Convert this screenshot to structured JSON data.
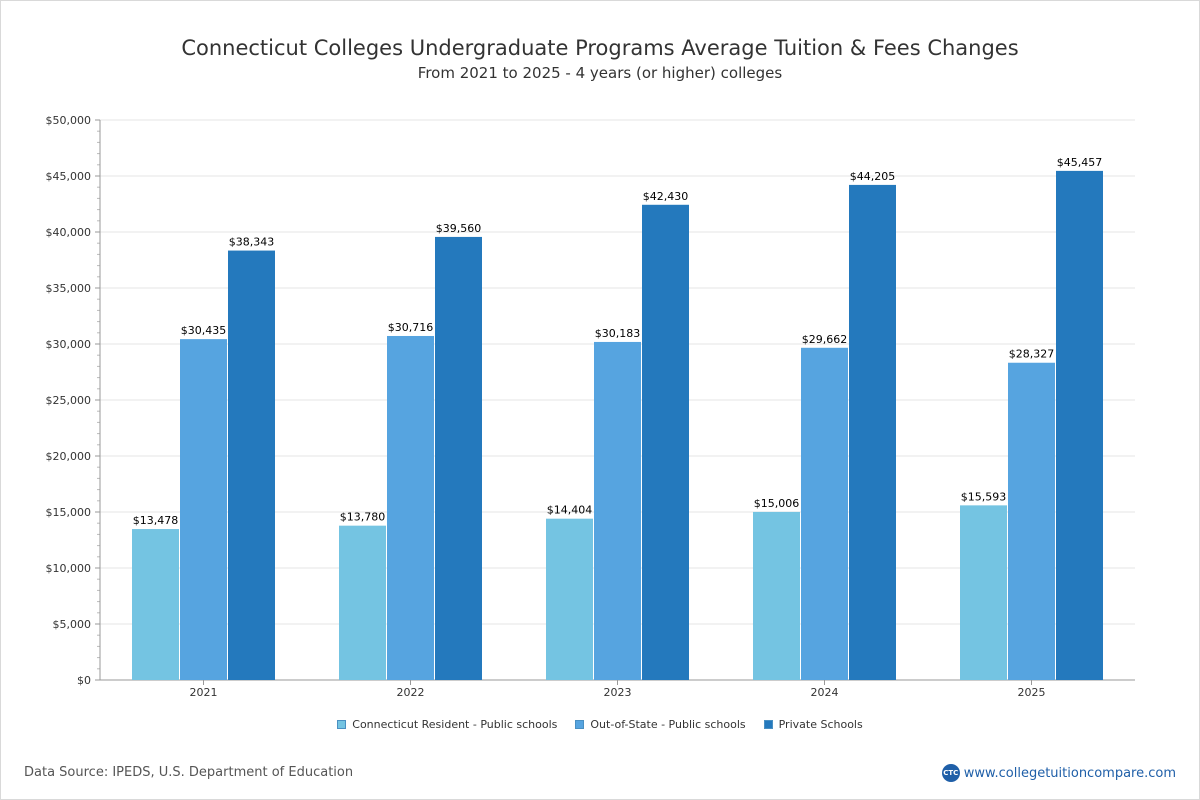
{
  "title": "Connecticut Colleges Undergraduate Programs Average Tuition & Fees Changes",
  "subtitle": "From 2021 to 2025 - 4 years (or higher) colleges",
  "source": "Data Source: IPEDS, U.S. Department of Education",
  "brand": {
    "logo_text": "CTC",
    "url": "www.collegetuitioncompare.com"
  },
  "chart_data": {
    "type": "bar",
    "categories": [
      "2021",
      "2022",
      "2023",
      "2024",
      "2025"
    ],
    "series": [
      {
        "name": "Connecticut Resident - Public schools",
        "color": "#74c4e2",
        "values": [
          13478,
          13780,
          14404,
          15006,
          15593
        ],
        "labels": [
          "$13,478",
          "$13,780",
          "$14,404",
          "$15,006",
          "$15,593"
        ]
      },
      {
        "name": "Out-of-State - Public schools",
        "color": "#56a4e0",
        "values": [
          30435,
          30716,
          30183,
          29662,
          28327
        ],
        "labels": [
          "$30,435",
          "$30,716",
          "$30,183",
          "$29,662",
          "$28,327"
        ]
      },
      {
        "name": "Private Schools",
        "color": "#2479bd",
        "values": [
          38343,
          39560,
          42430,
          44205,
          45457
        ],
        "labels": [
          "$38,343",
          "$39,560",
          "$42,430",
          "$44,205",
          "$45,457"
        ]
      }
    ],
    "ylim": [
      0,
      50000
    ],
    "yticks": [
      0,
      5000,
      10000,
      15000,
      20000,
      25000,
      30000,
      35000,
      40000,
      45000,
      50000
    ],
    "ytick_labels": [
      "$0",
      "$5,000",
      "$10,000",
      "$15,000",
      "$20,000",
      "$25,000",
      "$30,000",
      "$35,000",
      "$40,000",
      "$45,000",
      "$50,000"
    ],
    "grid": true,
    "legend_position": "bottom-center"
  }
}
